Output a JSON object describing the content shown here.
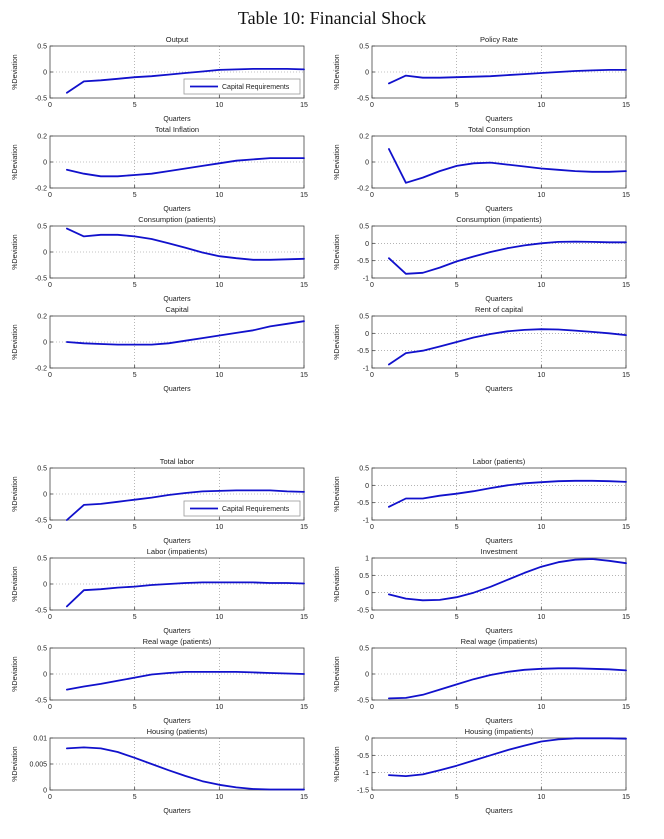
{
  "page": {
    "title": "Table 10: Financial Shock"
  },
  "legend_label": "Capital Requirements",
  "line_color": "#1111cc",
  "grid_color": "#888888",
  "axis_color": "#444444",
  "chart_data": [
    {
      "id": "output",
      "type": "line",
      "title": "Output",
      "xlabel": "Quarters",
      "ylabel": "%Deviation",
      "xlim": [
        0,
        15
      ],
      "ylim": [
        -0.5,
        0.5
      ],
      "xticks": [
        0,
        5,
        10,
        15
      ],
      "yticks": [
        0.5,
        0,
        -0.5
      ],
      "grid": true,
      "legend": true,
      "legend_position": "lower right",
      "series_name": "Capital Requirements",
      "x": [
        1,
        2,
        3,
        4,
        5,
        6,
        7,
        8,
        9,
        10,
        11,
        12,
        13,
        14,
        15
      ],
      "y": [
        -0.4,
        -0.18,
        -0.16,
        -0.13,
        -0.1,
        -0.08,
        -0.05,
        -0.02,
        0.01,
        0.04,
        0.05,
        0.06,
        0.06,
        0.06,
        0.05
      ]
    },
    {
      "id": "policy-rate",
      "type": "line",
      "title": "Policy Rate",
      "xlabel": "Quarters",
      "ylabel": "%Deviation",
      "xlim": [
        0,
        15
      ],
      "ylim": [
        -0.5,
        0.5
      ],
      "xticks": [
        0,
        5,
        10,
        15
      ],
      "yticks": [
        0.5,
        0,
        -0.5
      ],
      "grid": true,
      "legend": false,
      "series_name": "Capital Requirements",
      "x": [
        1,
        2,
        3,
        4,
        5,
        6,
        7,
        8,
        9,
        10,
        11,
        12,
        13,
        14,
        15
      ],
      "y": [
        -0.22,
        -0.07,
        -0.11,
        -0.11,
        -0.1,
        -0.09,
        -0.08,
        -0.06,
        -0.04,
        -0.02,
        0.0,
        0.02,
        0.03,
        0.04,
        0.04
      ]
    },
    {
      "id": "total-inflation",
      "type": "line",
      "title": "Total Inflation",
      "xlabel": "Quarters",
      "ylabel": "%Deviation",
      "xlim": [
        0,
        15
      ],
      "ylim": [
        -0.2,
        0.2
      ],
      "xticks": [
        0,
        5,
        10,
        15
      ],
      "yticks": [
        0.2,
        0,
        -0.2
      ],
      "grid": true,
      "legend": false,
      "series_name": "Capital Requirements",
      "x": [
        1,
        2,
        3,
        4,
        5,
        6,
        7,
        8,
        9,
        10,
        11,
        12,
        13,
        14,
        15
      ],
      "y": [
        -0.06,
        -0.09,
        -0.11,
        -0.11,
        -0.1,
        -0.09,
        -0.07,
        -0.05,
        -0.03,
        -0.01,
        0.01,
        0.02,
        0.03,
        0.03,
        0.03
      ]
    },
    {
      "id": "total-consumption",
      "type": "line",
      "title": "Total Consumption",
      "xlabel": "Quarters",
      "ylabel": "%Deviation",
      "xlim": [
        0,
        15
      ],
      "ylim": [
        -0.2,
        0.2
      ],
      "xticks": [
        0,
        5,
        10,
        15
      ],
      "yticks": [
        0.2,
        0,
        -0.2
      ],
      "grid": true,
      "legend": false,
      "series_name": "Capital Requirements",
      "x": [
        1,
        2,
        3,
        4,
        5,
        6,
        7,
        8,
        9,
        10,
        11,
        12,
        13,
        14,
        15
      ],
      "y": [
        0.1,
        -0.16,
        -0.12,
        -0.07,
        -0.03,
        -0.01,
        -0.005,
        -0.02,
        -0.035,
        -0.05,
        -0.06,
        -0.07,
        -0.075,
        -0.075,
        -0.07
      ]
    },
    {
      "id": "consumption-patients",
      "type": "line",
      "title": "Consumption (patients)",
      "xlabel": "Quarters",
      "ylabel": "%Deviation",
      "xlim": [
        0,
        15
      ],
      "ylim": [
        -0.5,
        0.5
      ],
      "xticks": [
        0,
        5,
        10,
        15
      ],
      "yticks": [
        0.5,
        0,
        -0.5
      ],
      "grid": true,
      "legend": false,
      "series_name": "Capital Requirements",
      "x": [
        1,
        2,
        3,
        4,
        5,
        6,
        7,
        8,
        9,
        10,
        11,
        12,
        13,
        14,
        15
      ],
      "y": [
        0.45,
        0.3,
        0.33,
        0.33,
        0.3,
        0.25,
        0.17,
        0.08,
        -0.01,
        -0.08,
        -0.12,
        -0.15,
        -0.15,
        -0.14,
        -0.13
      ]
    },
    {
      "id": "consumption-impatients",
      "type": "line",
      "title": "Consumption (impatients)",
      "xlabel": "Quarters",
      "ylabel": "%Deviation",
      "xlim": [
        0,
        15
      ],
      "ylim": [
        -1,
        0.5
      ],
      "xticks": [
        0,
        5,
        10,
        15
      ],
      "yticks": [
        0.5,
        0,
        -0.5,
        -1
      ],
      "grid": true,
      "legend": false,
      "series_name": "Capital Requirements",
      "x": [
        1,
        2,
        3,
        4,
        5,
        6,
        7,
        8,
        9,
        10,
        11,
        12,
        13,
        14,
        15
      ],
      "y": [
        -0.43,
        -0.88,
        -0.85,
        -0.7,
        -0.52,
        -0.38,
        -0.25,
        -0.14,
        -0.06,
        0.0,
        0.04,
        0.05,
        0.04,
        0.03,
        0.03
      ]
    },
    {
      "id": "capital",
      "type": "line",
      "title": "Capital",
      "xlabel": "Quarters",
      "ylabel": "%Deviation",
      "xlim": [
        0,
        15
      ],
      "ylim": [
        -0.2,
        0.2
      ],
      "xticks": [
        0,
        5,
        10,
        15
      ],
      "yticks": [
        0.2,
        0,
        -0.2
      ],
      "grid": true,
      "legend": false,
      "series_name": "Capital Requirements",
      "x": [
        1,
        2,
        3,
        4,
        5,
        6,
        7,
        8,
        9,
        10,
        11,
        12,
        13,
        14,
        15
      ],
      "y": [
        0.0,
        -0.01,
        -0.015,
        -0.02,
        -0.02,
        -0.02,
        -0.01,
        0.01,
        0.03,
        0.05,
        0.07,
        0.09,
        0.12,
        0.14,
        0.16
      ]
    },
    {
      "id": "rent-of-capital",
      "type": "line",
      "title": "Rent of capital",
      "xlabel": "Quarters",
      "ylabel": "%Deviation",
      "xlim": [
        0,
        15
      ],
      "ylim": [
        -1,
        0.5
      ],
      "xticks": [
        0,
        5,
        10,
        15
      ],
      "yticks": [
        0.5,
        0,
        -0.5,
        -1
      ],
      "grid": true,
      "legend": false,
      "series_name": "Capital Requirements",
      "x": [
        1,
        2,
        3,
        4,
        5,
        6,
        7,
        8,
        9,
        10,
        11,
        12,
        13,
        14,
        15
      ],
      "y": [
        -0.9,
        -0.57,
        -0.5,
        -0.38,
        -0.25,
        -0.12,
        -0.02,
        0.06,
        0.1,
        0.12,
        0.11,
        0.08,
        0.04,
        0.0,
        -0.05
      ]
    },
    {
      "id": "total-labor",
      "type": "line",
      "title": "Total labor",
      "xlabel": "Quarters",
      "ylabel": "%Deviation",
      "xlim": [
        0,
        15
      ],
      "ylim": [
        -0.5,
        0.5
      ],
      "xticks": [
        0,
        5,
        10,
        15
      ],
      "yticks": [
        0.5,
        0,
        -0.5
      ],
      "grid": true,
      "legend": true,
      "legend_position": "lower right",
      "series_name": "Capital Requirements",
      "x": [
        1,
        2,
        3,
        4,
        5,
        6,
        7,
        8,
        9,
        10,
        11,
        12,
        13,
        14,
        15
      ],
      "y": [
        -0.5,
        -0.21,
        -0.19,
        -0.15,
        -0.11,
        -0.07,
        -0.02,
        0.02,
        0.05,
        0.06,
        0.07,
        0.07,
        0.07,
        0.05,
        0.04
      ]
    },
    {
      "id": "labor-patients",
      "type": "line",
      "title": "Labor (patients)",
      "xlabel": "Quarters",
      "ylabel": "%Deviation",
      "xlim": [
        0,
        15
      ],
      "ylim": [
        -1,
        0.5
      ],
      "xticks": [
        0,
        5,
        10,
        15
      ],
      "yticks": [
        0.5,
        0,
        -0.5,
        -1
      ],
      "grid": true,
      "legend": false,
      "series_name": "Capital Requirements",
      "x": [
        1,
        2,
        3,
        4,
        5,
        6,
        7,
        8,
        9,
        10,
        11,
        12,
        13,
        14,
        15
      ],
      "y": [
        -0.62,
        -0.38,
        -0.38,
        -0.3,
        -0.24,
        -0.17,
        -0.08,
        0.0,
        0.06,
        0.09,
        0.12,
        0.13,
        0.13,
        0.12,
        0.1
      ]
    },
    {
      "id": "labor-impatients",
      "type": "line",
      "title": "Labor (impatients)",
      "xlabel": "Quarters",
      "ylabel": "%Deviation",
      "xlim": [
        0,
        15
      ],
      "ylim": [
        -0.5,
        0.5
      ],
      "xticks": [
        0,
        5,
        10,
        15
      ],
      "yticks": [
        0.5,
        0,
        -0.5
      ],
      "grid": true,
      "legend": false,
      "series_name": "Capital Requirements",
      "x": [
        1,
        2,
        3,
        4,
        5,
        6,
        7,
        8,
        9,
        10,
        11,
        12,
        13,
        14,
        15
      ],
      "y": [
        -0.43,
        -0.12,
        -0.1,
        -0.07,
        -0.05,
        -0.02,
        0.0,
        0.02,
        0.03,
        0.03,
        0.03,
        0.03,
        0.02,
        0.02,
        0.01
      ]
    },
    {
      "id": "investment",
      "type": "line",
      "title": "Investment",
      "xlabel": "Quarters",
      "ylabel": "%Deviation",
      "xlim": [
        0,
        15
      ],
      "ylim": [
        -0.5,
        1
      ],
      "xticks": [
        0,
        5,
        10,
        15
      ],
      "yticks": [
        1,
        0.5,
        0,
        -0.5
      ],
      "grid": true,
      "legend": false,
      "series_name": "Capital Requirements",
      "x": [
        1,
        2,
        3,
        4,
        5,
        6,
        7,
        8,
        9,
        10,
        11,
        12,
        13,
        14,
        15
      ],
      "y": [
        -0.05,
        -0.17,
        -0.22,
        -0.21,
        -0.13,
        0.0,
        0.17,
        0.37,
        0.57,
        0.75,
        0.88,
        0.95,
        0.97,
        0.92,
        0.85
      ]
    },
    {
      "id": "real-wage-patients",
      "type": "line",
      "title": "Real wage (patients)",
      "xlabel": "Quarters",
      "ylabel": "%Deviation",
      "xlim": [
        0,
        15
      ],
      "ylim": [
        -0.5,
        0.5
      ],
      "xticks": [
        0,
        5,
        10,
        15
      ],
      "yticks": [
        0.5,
        0,
        -0.5
      ],
      "grid": true,
      "legend": false,
      "series_name": "Capital Requirements",
      "x": [
        1,
        2,
        3,
        4,
        5,
        6,
        7,
        8,
        9,
        10,
        11,
        12,
        13,
        14,
        15
      ],
      "y": [
        -0.3,
        -0.24,
        -0.19,
        -0.13,
        -0.07,
        -0.01,
        0.02,
        0.04,
        0.04,
        0.04,
        0.04,
        0.03,
        0.02,
        0.01,
        0.0
      ]
    },
    {
      "id": "real-wage-impatients",
      "type": "line",
      "title": "Real wage (impatients)",
      "xlabel": "Quarters",
      "ylabel": "%Deviation",
      "xlim": [
        0,
        15
      ],
      "ylim": [
        -0.5,
        0.5
      ],
      "xticks": [
        0,
        5,
        10,
        15
      ],
      "yticks": [
        0.5,
        0,
        -0.5
      ],
      "grid": true,
      "legend": false,
      "series_name": "Capital Requirements",
      "x": [
        1,
        2,
        3,
        4,
        5,
        6,
        7,
        8,
        9,
        10,
        11,
        12,
        13,
        14,
        15
      ],
      "y": [
        -0.47,
        -0.46,
        -0.4,
        -0.3,
        -0.2,
        -0.1,
        -0.02,
        0.04,
        0.08,
        0.1,
        0.11,
        0.11,
        0.1,
        0.09,
        0.07
      ]
    },
    {
      "id": "housing-patients",
      "type": "line",
      "title": "Housing (patients)",
      "xlabel": "Quarters",
      "ylabel": "%Deviation",
      "xlim": [
        0,
        15
      ],
      "ylim": [
        0,
        0.01
      ],
      "xticks": [
        0,
        5,
        10,
        15
      ],
      "yticks": [
        0.01,
        0.005,
        0
      ],
      "grid": true,
      "legend": false,
      "series_name": "Capital Requirements",
      "x": [
        1,
        2,
        3,
        4,
        5,
        6,
        7,
        8,
        9,
        10,
        11,
        12,
        13,
        14,
        15
      ],
      "y": [
        0.008,
        0.0082,
        0.008,
        0.0073,
        0.0062,
        0.005,
        0.0038,
        0.0027,
        0.0017,
        0.001,
        0.0005,
        0.0002,
        0.0001,
        0.0001,
        0.0001
      ]
    },
    {
      "id": "housing-impatients",
      "type": "line",
      "title": "Housing (impatients)",
      "xlabel": "Quarters",
      "ylabel": "%Deviation",
      "xlim": [
        0,
        15
      ],
      "ylim": [
        -1.5,
        0
      ],
      "xticks": [
        0,
        5,
        10,
        15
      ],
      "yticks": [
        0,
        -0.5,
        -1,
        -1.5
      ],
      "grid": true,
      "legend": false,
      "series_name": "Capital Requirements",
      "x": [
        1,
        2,
        3,
        4,
        5,
        6,
        7,
        8,
        9,
        10,
        11,
        12,
        13,
        14,
        15
      ],
      "y": [
        -1.07,
        -1.1,
        -1.05,
        -0.93,
        -0.8,
        -0.65,
        -0.5,
        -0.35,
        -0.22,
        -0.1,
        -0.04,
        -0.01,
        -0.01,
        -0.01,
        -0.02
      ]
    }
  ]
}
